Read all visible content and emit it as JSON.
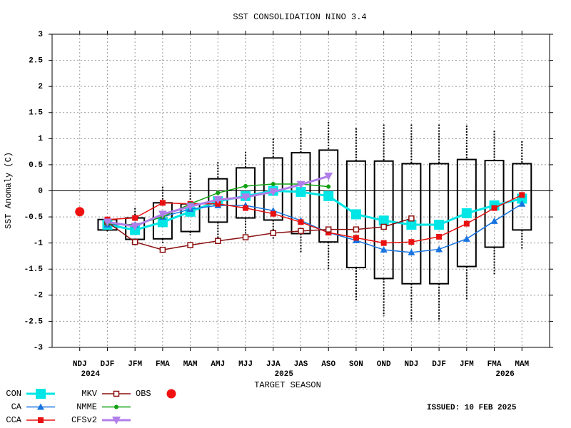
{
  "chart_data": {
    "type": "plume",
    "title": "SST CONSOLIDATION NINO 3.4",
    "x_label": "TARGET SEASON",
    "y_label": "SST Anomaly (C)",
    "issued": "ISSUED: 10 FEB 2025",
    "categories": [
      "NDJ",
      "DJF",
      "JFM",
      "FMA",
      "MAM",
      "AMJ",
      "MJJ",
      "JJA",
      "JAS",
      "ASO",
      "SON",
      "OND",
      "NDJ",
      "DJF",
      "JFM",
      "FMA",
      "MAM"
    ],
    "years": [
      "2024",
      null,
      null,
      null,
      null,
      null,
      null,
      "2025",
      null,
      null,
      null,
      null,
      null,
      null,
      null,
      "2026",
      null
    ],
    "xlim": [
      -1,
      17
    ],
    "ylim": [
      -3,
      3
    ],
    "yticks": [
      -3,
      -2.5,
      -2,
      -1.5,
      -1,
      -0.5,
      0,
      0.5,
      1,
      1.5,
      2,
      2.5,
      3
    ],
    "grid": true,
    "boxes": {
      "upper": [
        null,
        -0.55,
        -0.52,
        -0.23,
        -0.25,
        0.23,
        0.44,
        0.63,
        0.73,
        0.78,
        0.57,
        0.57,
        0.52,
        0.52,
        0.6,
        0.58,
        0.52
      ],
      "lower": [
        null,
        -0.75,
        -0.93,
        -0.92,
        -0.78,
        -0.6,
        -0.52,
        -0.56,
        -0.82,
        -0.98,
        -1.47,
        -1.68,
        -1.78,
        -1.78,
        -1.45,
        -1.08,
        -0.75
      ],
      "whisker_high": [
        null,
        -0.55,
        -0.33,
        0.08,
        0.35,
        0.55,
        0.75,
        1.0,
        1.2,
        1.32,
        1.2,
        1.27,
        1.27,
        1.27,
        1.25,
        1.15,
        0.95
      ],
      "whisker_low": [
        null,
        -0.8,
        -1.0,
        -1.0,
        -0.85,
        -0.9,
        -0.85,
        -0.95,
        -1.2,
        -1.52,
        -2.1,
        -2.4,
        -2.5,
        -2.5,
        -2.1,
        -1.62,
        -1.13
      ]
    },
    "series": [
      {
        "name": "CON",
        "color": "#00e5e5",
        "marker": "square",
        "line_width": 3,
        "values": [
          null,
          -0.65,
          -0.75,
          -0.6,
          -0.4,
          -0.2,
          -0.1,
          0.0,
          -0.02,
          -0.1,
          -0.45,
          -0.57,
          -0.65,
          -0.65,
          -0.43,
          -0.28,
          -0.15
        ]
      },
      {
        "name": "CA",
        "color": "#1874e0",
        "marker": "triangle",
        "line_width": 1.5,
        "values": [
          null,
          -0.65,
          -0.65,
          -0.5,
          -0.35,
          -0.28,
          -0.28,
          -0.38,
          -0.57,
          -0.8,
          -0.95,
          -1.13,
          -1.18,
          -1.12,
          -0.92,
          -0.58,
          -0.25
        ]
      },
      {
        "name": "CCA",
        "color": "#e81010",
        "marker": "square-small",
        "line_width": 1.5,
        "values": [
          null,
          -0.55,
          -0.52,
          -0.23,
          -0.25,
          -0.25,
          -0.33,
          -0.44,
          -0.6,
          -0.8,
          -0.9,
          -1.0,
          -0.98,
          -0.88,
          -0.63,
          -0.33,
          -0.08
        ]
      },
      {
        "name": "MKV",
        "color": "#8b1010",
        "marker": "square-open",
        "line_width": 1.5,
        "values": [
          null,
          -0.6,
          -0.98,
          -1.13,
          -1.04,
          -0.96,
          -0.89,
          -0.81,
          -0.77,
          -0.74,
          -0.74,
          -0.69,
          -0.53,
          null,
          null,
          null,
          null
        ]
      },
      {
        "name": "NMME",
        "color": "#10a010",
        "marker": "dot",
        "line_width": 1.5,
        "values": [
          null,
          -0.63,
          -0.65,
          -0.5,
          -0.25,
          -0.04,
          0.09,
          0.13,
          0.13,
          0.08,
          null,
          null,
          null,
          null,
          null,
          null,
          null
        ]
      },
      {
        "name": "CFSv2",
        "color": "#b07ee8",
        "marker": "triangle-down",
        "line_width": 3,
        "values": [
          null,
          -0.6,
          -0.68,
          -0.45,
          -0.3,
          -0.17,
          -0.12,
          -0.02,
          0.12,
          0.28,
          null,
          null,
          null,
          null,
          null,
          null,
          null
        ]
      },
      {
        "name": "OBS",
        "color": "#f01010",
        "marker": "circle",
        "line_width": 0,
        "values": [
          -0.4,
          null,
          null,
          null,
          null,
          null,
          null,
          null,
          null,
          null,
          null,
          null,
          null,
          null,
          null,
          null,
          null
        ]
      }
    ]
  }
}
